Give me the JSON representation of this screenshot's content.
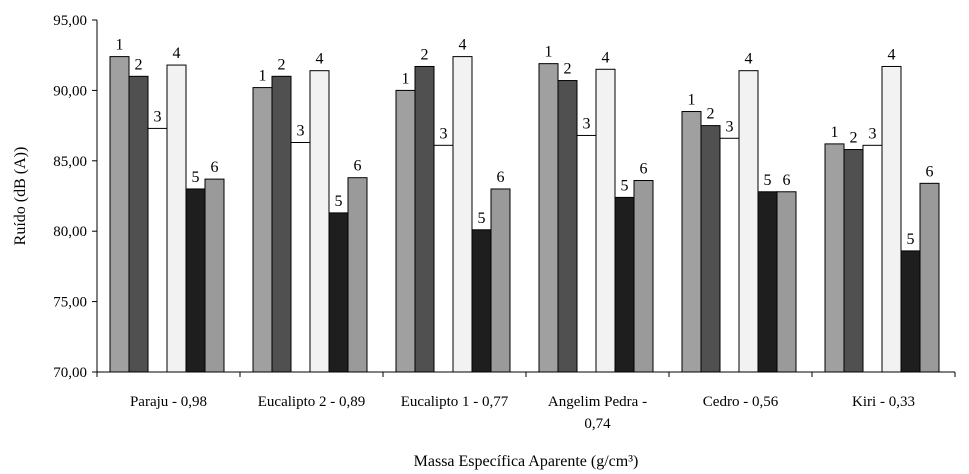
{
  "chart_data": {
    "type": "bar",
    "title": "",
    "xlabel": "Massa Específica Aparente (g/cm³)",
    "ylabel": "Ruído (dB (A))",
    "ylim": [
      70,
      95
    ],
    "yticks": [
      "70,00",
      "75,00",
      "80,00",
      "85,00",
      "90,00",
      "95,00"
    ],
    "ytick_values": [
      70,
      75,
      80,
      85,
      90,
      95
    ],
    "grid": false,
    "legend": "none",
    "categories": [
      [
        "Paraju - 0,98"
      ],
      [
        "Eucalipto 2 - 0,89"
      ],
      [
        "Eucalipto 1 - 0,77"
      ],
      [
        "Angelim Pedra -",
        "0,74"
      ],
      [
        "Cedro - 0,56"
      ],
      [
        "Kiri - 0,33"
      ]
    ],
    "series": [
      {
        "label": "1",
        "color": "#a0a0a0",
        "values": [
          92.4,
          90.2,
          90.0,
          91.9,
          88.5,
          86.2
        ]
      },
      {
        "label": "2",
        "color": "#505050",
        "values": [
          91.0,
          91.0,
          91.7,
          90.7,
          87.5,
          85.8
        ]
      },
      {
        "label": "3",
        "color": "#ffffff",
        "values": [
          87.3,
          86.3,
          86.1,
          86.8,
          86.6,
          86.1
        ]
      },
      {
        "label": "4",
        "color": "#f2f2f2",
        "values": [
          91.8,
          91.4,
          92.4,
          91.5,
          91.4,
          91.7
        ]
      },
      {
        "label": "5",
        "color": "#1e1e1e",
        "values": [
          83.0,
          81.3,
          80.1,
          82.4,
          82.8,
          78.6
        ]
      },
      {
        "label": "6",
        "color": "#9a9a9a",
        "values": [
          83.7,
          83.8,
          83.0,
          83.6,
          82.8,
          83.4
        ]
      }
    ]
  }
}
